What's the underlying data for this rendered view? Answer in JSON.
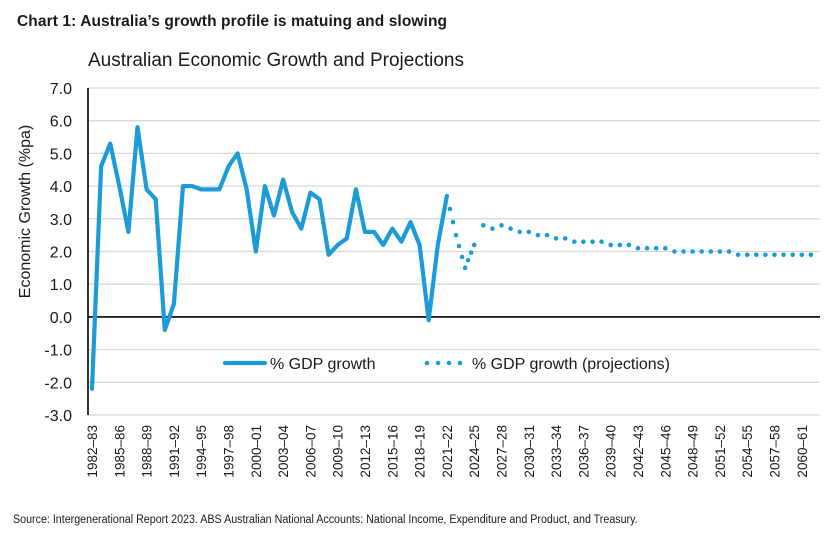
{
  "heading": "Chart 1: Australia’s growth profile is matuing and slowing",
  "source": "Source: Intergenerational Report 2023. ABS Australian National Accounts: National Income, Expenditure and Product, and Treasury.",
  "colors": {
    "series": "#1b9bd7",
    "grid": "#d9d9d9",
    "axis": "#000000",
    "text": "#1a1a1a"
  },
  "chart_data": {
    "type": "line",
    "title": "Australian Economic Growth and Projections",
    "xlabel": "",
    "ylabel": "Economic Growth (%pa)",
    "ylim": [
      -3.0,
      7.0
    ],
    "yticks": [
      "7.0",
      "6.0",
      "5.0",
      "4.0",
      "3.0",
      "2.0",
      "1.0",
      "0.0",
      "-1.0",
      "-2.0",
      "-3.0"
    ],
    "ytick_values": [
      7,
      6,
      5,
      4,
      3,
      2,
      1,
      0,
      -1,
      -2,
      -3
    ],
    "grid": true,
    "legend": "bottom-center (inside plot)",
    "x_tick_labels": [
      "1982–83",
      "1985–86",
      "1988–89",
      "1991–92",
      "1994–95",
      "1997–98",
      "2000–01",
      "2003–04",
      "2006–07",
      "2009–10",
      "2012–13",
      "2015–16",
      "2018–19",
      "2021–22",
      "2024–25",
      "2027–28",
      "2030–31",
      "2033–34",
      "2036–37",
      "2039–40",
      "2042–43",
      "2045–46",
      "2048–49",
      "2051–52",
      "2054–55",
      "2057–58",
      "2060–61"
    ],
    "x_tick_years": [
      1982,
      1985,
      1988,
      1991,
      1994,
      1997,
      2000,
      2003,
      2006,
      2009,
      2012,
      2015,
      2018,
      2021,
      2024,
      2027,
      2030,
      2033,
      2036,
      2039,
      2042,
      2045,
      2048,
      2051,
      2054,
      2057,
      2060
    ],
    "x_range_years": [
      1982,
      2062
    ],
    "series": [
      {
        "name": "% GDP growth",
        "style": "solid",
        "x": [
          1982,
          1983,
          1984,
          1985,
          1986,
          1987,
          1988,
          1989,
          1990,
          1991,
          1992,
          1993,
          1994,
          1995,
          1996,
          1997,
          1998,
          1999,
          2000,
          2001,
          2002,
          2003,
          2004,
          2005,
          2006,
          2007,
          2008,
          2009,
          2010,
          2011,
          2012,
          2013,
          2014,
          2015,
          2016,
          2017,
          2018,
          2019,
          2020,
          2021
        ],
        "values": [
          -2.2,
          4.6,
          5.3,
          4.0,
          2.6,
          5.8,
          3.9,
          3.6,
          -0.4,
          0.4,
          4.0,
          4.0,
          3.9,
          3.9,
          3.9,
          4.6,
          5.0,
          3.9,
          2.0,
          4.0,
          3.1,
          4.2,
          3.2,
          2.7,
          3.8,
          3.6,
          1.9,
          2.2,
          2.4,
          3.9,
          2.6,
          2.6,
          2.2,
          2.7,
          2.3,
          2.9,
          2.2,
          -0.1,
          2.2,
          3.7
        ]
      },
      {
        "name": "% GDP growth (projections)",
        "style": "dotted",
        "x": [
          2021,
          2022,
          2023,
          2024,
          2025,
          2026,
          2027,
          2028,
          2029,
          2030,
          2031,
          2032,
          2033,
          2034,
          2035,
          2036,
          2037,
          2038,
          2039,
          2040,
          2041,
          2042,
          2043,
          2044,
          2045,
          2046,
          2047,
          2048,
          2049,
          2050,
          2051,
          2052,
          2053,
          2054,
          2055,
          2056,
          2057,
          2058,
          2059,
          2060,
          2061
        ],
        "values": [
          3.7,
          2.5,
          1.5,
          2.2,
          2.8,
          2.7,
          2.8,
          2.7,
          2.6,
          2.6,
          2.5,
          2.5,
          2.4,
          2.4,
          2.3,
          2.3,
          2.3,
          2.3,
          2.2,
          2.2,
          2.2,
          2.1,
          2.1,
          2.1,
          2.1,
          2.0,
          2.0,
          2.0,
          2.0,
          2.0,
          2.0,
          2.0,
          1.9,
          1.9,
          1.9,
          1.9,
          1.9,
          1.9,
          1.9,
          1.9,
          1.9
        ]
      }
    ]
  }
}
